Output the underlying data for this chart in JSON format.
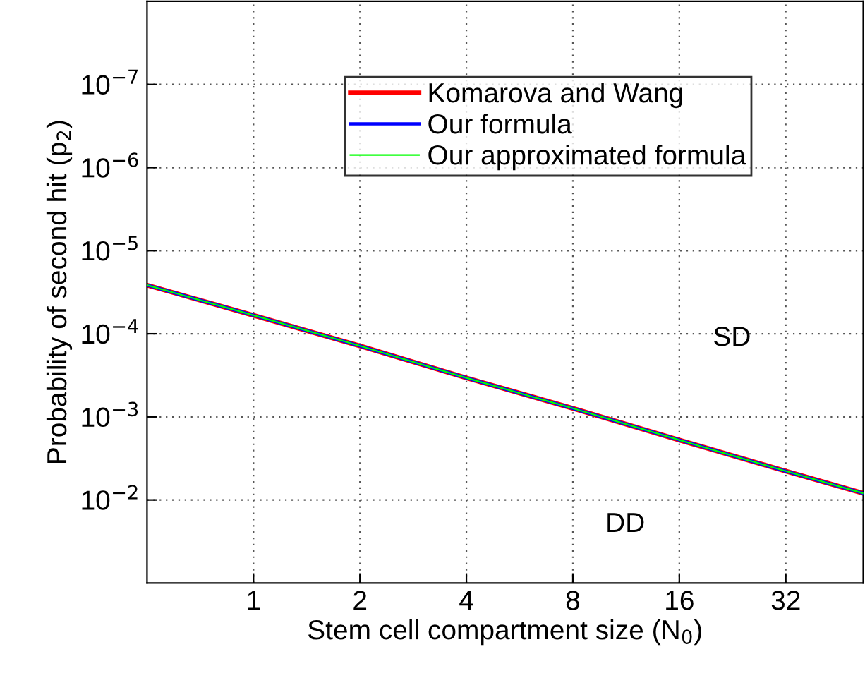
{
  "chart_data": {
    "type": "line",
    "xlabel": "Stem cell compartment size (N$_{0}$)",
    "ylabel": "Probability of second hit (p$_{2}$)",
    "x": [
      0.5,
      1,
      2,
      4,
      8,
      16,
      32,
      53
    ],
    "series": [
      {
        "name": "Komarova and Wang",
        "color": "#ff0000",
        "values": [
          2.6e-05,
          6e-05,
          0.00014,
          0.00034,
          0.00079,
          0.0019,
          0.0045,
          0.0083
        ]
      },
      {
        "name": "Our formula",
        "color": "#0000ff",
        "values": [
          2.6e-05,
          6e-05,
          0.00014,
          0.00034,
          0.00079,
          0.0019,
          0.0045,
          0.0083
        ]
      },
      {
        "name": "Our approximated formula",
        "color": "#00ff00",
        "values": [
          2.6e-05,
          6e-05,
          0.00014,
          0.00034,
          0.00079,
          0.0019,
          0.0045,
          0.0083
        ]
      }
    ],
    "log": "xy",
    "xlim": [
      0.5,
      53
    ],
    "xticks": [
      1,
      2,
      4,
      8,
      16,
      32
    ],
    "ylim": [
      0.1,
      1e-08
    ],
    "yticks": [
      {
        "value": 1e-07,
        "label": "10$^{−7}$"
      },
      {
        "value": 1e-06,
        "label": "10$^{−6}$"
      },
      {
        "value": 1e-05,
        "label": "10$^{−5}$"
      },
      {
        "value": 0.0001,
        "label": "10$^{−4}$"
      },
      {
        "value": 0.001,
        "label": "10$^{−3}$"
      },
      {
        "value": 0.01,
        "label": "10$^{−2}$"
      }
    ],
    "annotations": [
      "SD",
      "DD"
    ],
    "grid": true,
    "legend": "top",
    "marker": "none",
    "line_style": "solid"
  }
}
